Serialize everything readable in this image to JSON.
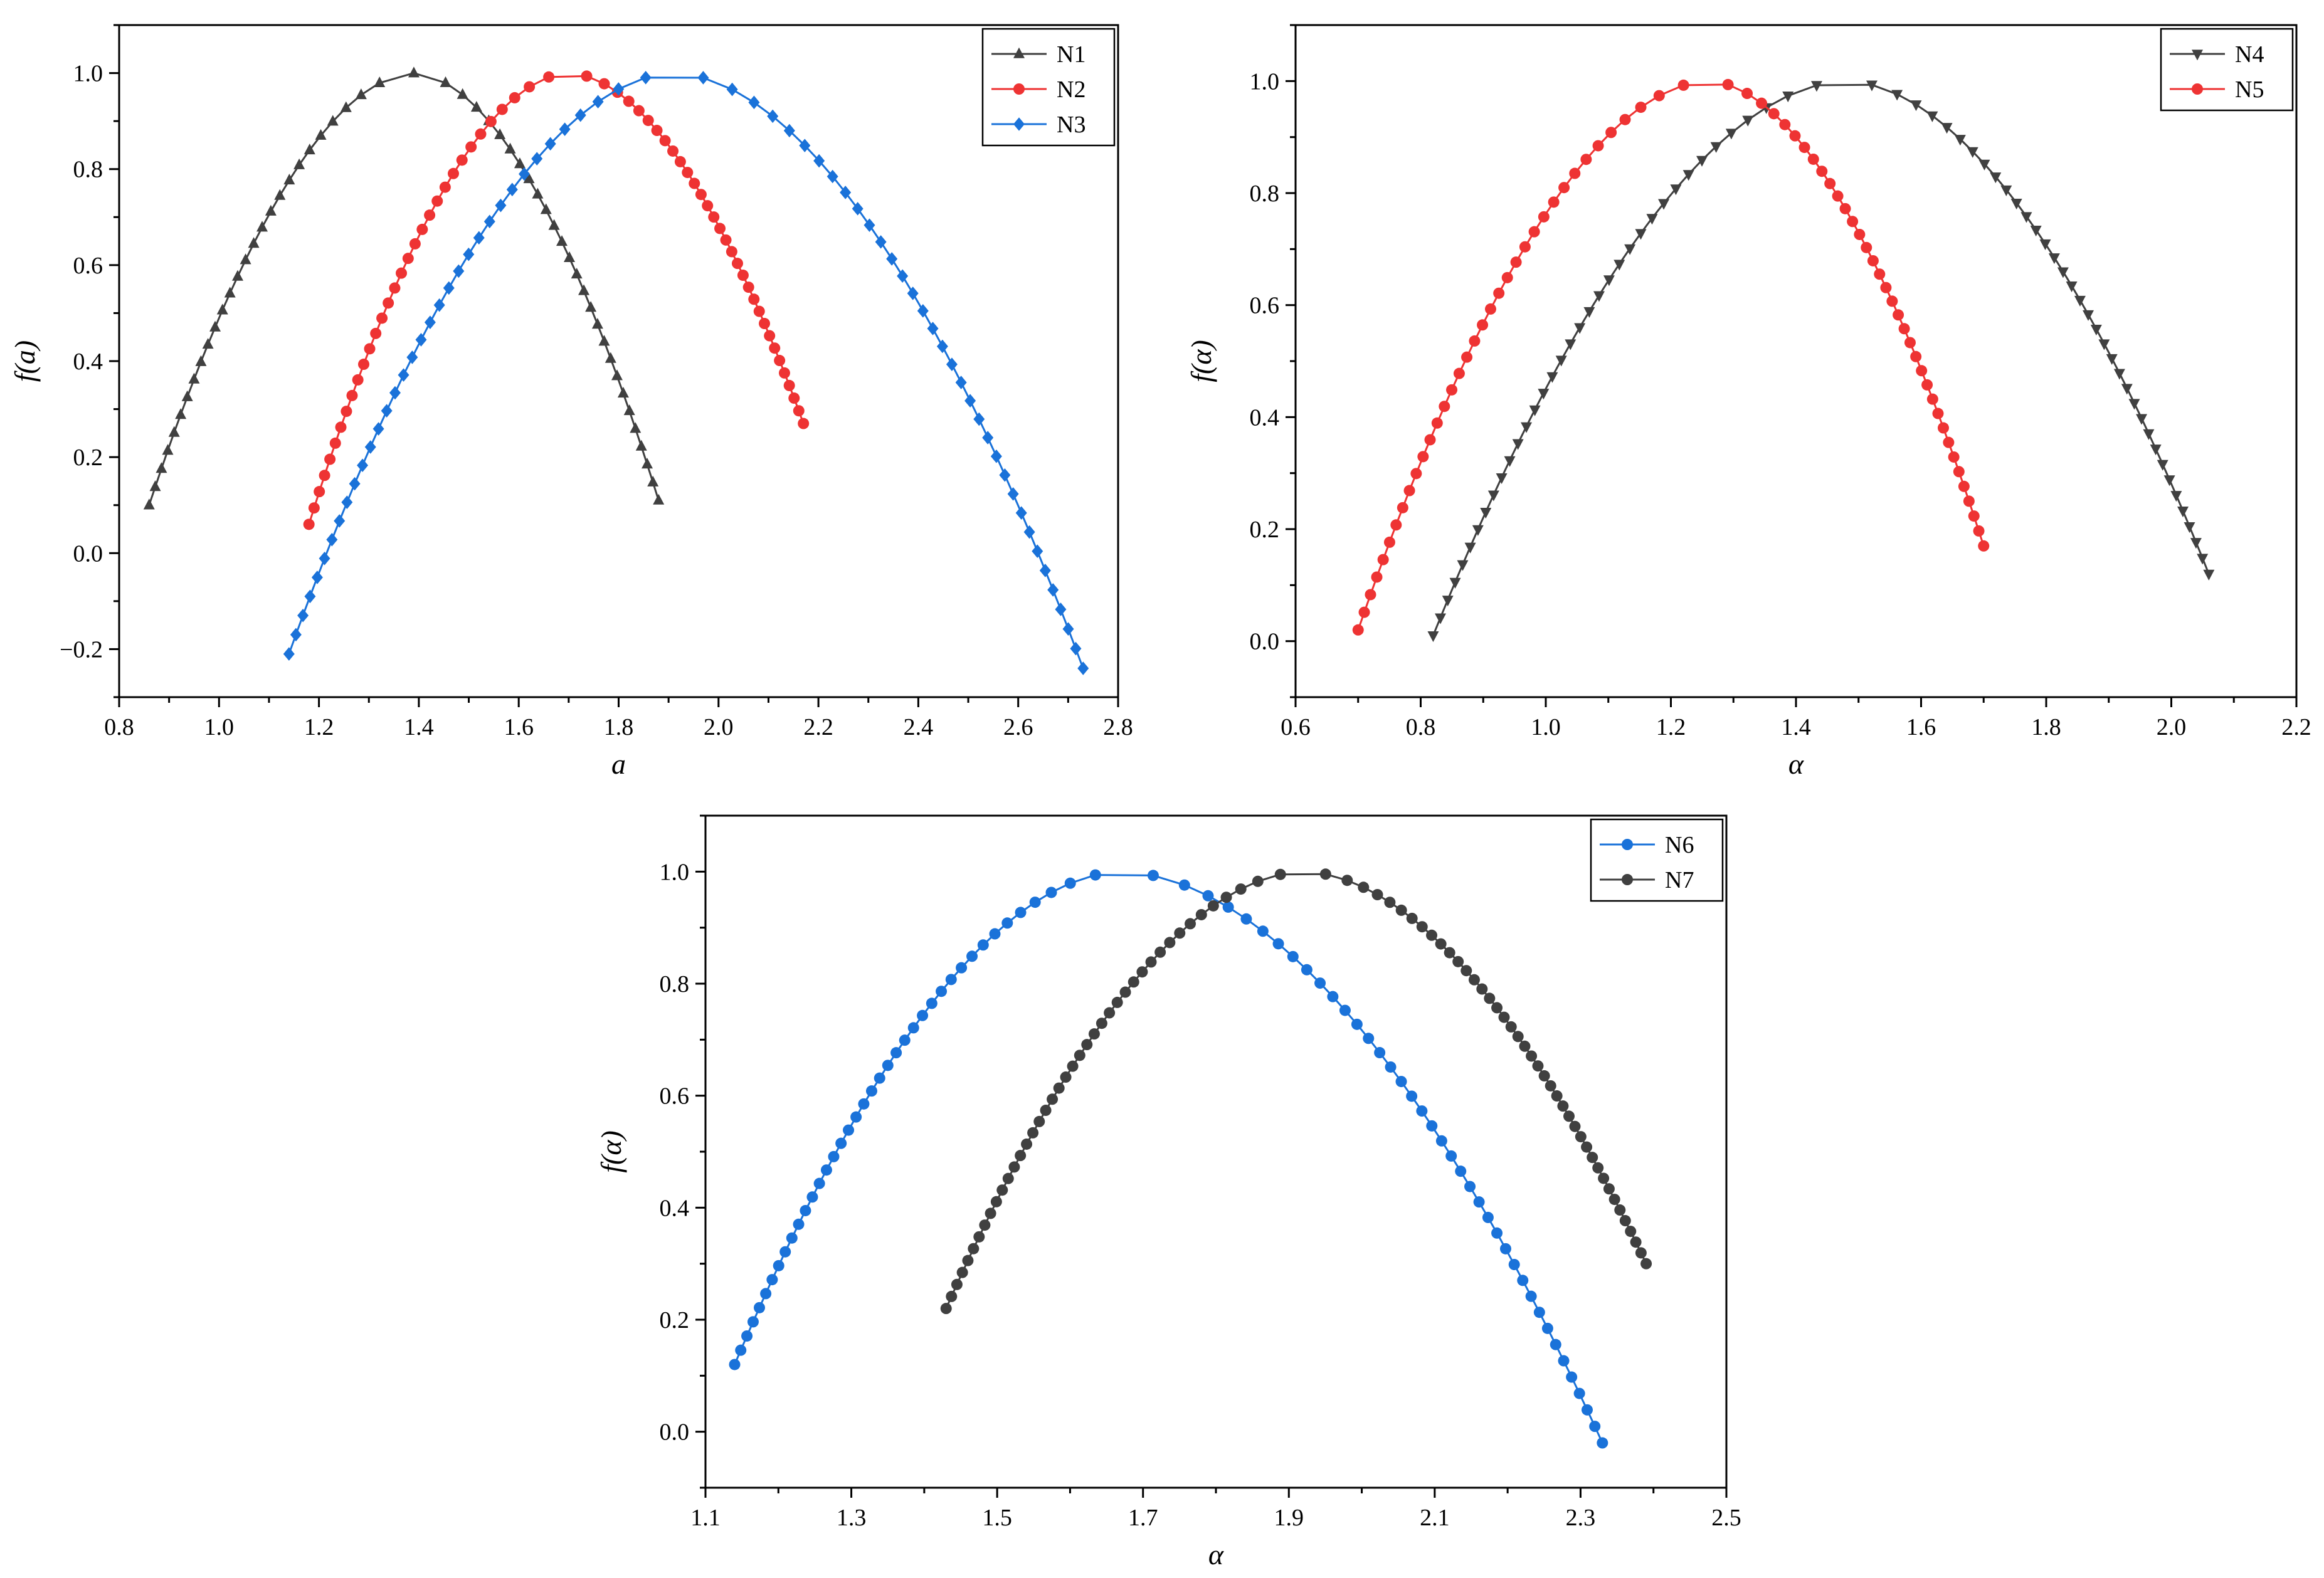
{
  "chart_data": [
    {
      "type": "line",
      "xlabel": "a",
      "ylabel": "f(a)",
      "xlim": [
        0.8,
        2.8
      ],
      "ylim": [
        -0.3,
        1.1
      ],
      "xticks": [
        "0.8",
        "1.0",
        "1.2",
        "1.4",
        "1.6",
        "1.8",
        "2.0",
        "2.2",
        "2.4",
        "2.6",
        "2.8"
      ],
      "yticks": [
        "−0.2",
        "0.0",
        "0.2",
        "0.4",
        "0.6",
        "0.8",
        "1.0"
      ],
      "legend_position": "top-right",
      "series": [
        {
          "name": "N1",
          "color": "#404040",
          "marker": "triangle-up",
          "alpha_min": 0.86,
          "alpha_peak": 1.39,
          "alpha_max": 1.88,
          "f_left": 0.1,
          "f_right": 0.11
        },
        {
          "name": "N2",
          "color": "#ee3333",
          "marker": "circle",
          "alpha_min": 1.18,
          "alpha_peak": 1.7,
          "alpha_max": 2.17,
          "f_left": 0.06,
          "f_right": 0.27
        },
        {
          "name": "N3",
          "color": "#1a72d9",
          "marker": "diamond",
          "alpha_min": 1.14,
          "alpha_peak": 1.91,
          "alpha_max": 2.73,
          "f_left": -0.21,
          "f_right": -0.24
        }
      ]
    },
    {
      "type": "line",
      "xlabel": "α",
      "ylabel": "f(α)",
      "xlim": [
        0.6,
        2.2
      ],
      "ylim": [
        -0.1,
        1.1
      ],
      "xticks": [
        "0.6",
        "0.8",
        "1.0",
        "1.2",
        "1.4",
        "1.6",
        "1.8",
        "2.0",
        "2.2"
      ],
      "yticks": [
        "0.0",
        "0.2",
        "0.4",
        "0.6",
        "0.8",
        "1.0"
      ],
      "legend_position": "top-right",
      "series": [
        {
          "name": "N4",
          "color": "#404040",
          "marker": "triangle-down",
          "alpha_min": 0.82,
          "alpha_peak": 1.48,
          "alpha_max": 2.06,
          "f_left": 0.01,
          "f_right": 0.12
        },
        {
          "name": "N5",
          "color": "#ee3333",
          "marker": "circle",
          "alpha_min": 0.7,
          "alpha_peak": 1.26,
          "alpha_max": 1.7,
          "f_left": 0.02,
          "f_right": 0.17
        }
      ]
    },
    {
      "type": "line",
      "xlabel": "α",
      "ylabel": "f(α)",
      "xlim": [
        1.1,
        2.5
      ],
      "ylim": [
        -0.1,
        1.1
      ],
      "xticks": [
        "1.1",
        "1.3",
        "1.5",
        "1.7",
        "1.9",
        "2.1",
        "2.3",
        "2.5"
      ],
      "yticks": [
        "0.0",
        "0.2",
        "0.4",
        "0.6",
        "0.8",
        "1.0"
      ],
      "legend_position": "top-right",
      "series": [
        {
          "name": "N6",
          "color": "#1a72d9",
          "marker": "circle",
          "alpha_min": 1.14,
          "alpha_peak": 1.67,
          "alpha_max": 2.33,
          "f_left": 0.12,
          "f_right": -0.02
        },
        {
          "name": "N7",
          "color": "#404040",
          "marker": "circle",
          "alpha_min": 1.43,
          "alpha_peak": 1.92,
          "alpha_max": 2.39,
          "f_left": 0.22,
          "f_right": 0.3
        }
      ]
    }
  ]
}
